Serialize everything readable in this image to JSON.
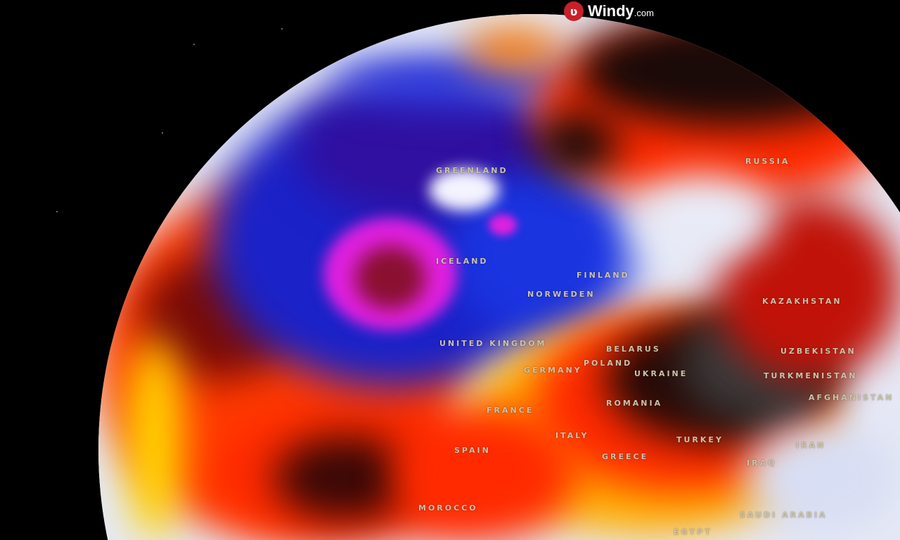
{
  "brand": {
    "name": "Windy",
    "suffix": ".com",
    "icon": "windy-logo-icon",
    "color": "#c8202a"
  },
  "map": {
    "layer": "temperature anomaly globe",
    "labels": [
      "GREENLAND",
      "RUSSIA",
      "ICELAND",
      "FINLAND",
      "NORWEDEN",
      "UNITED KINGDOM",
      "BELARUS",
      "POLAND",
      "GERMANY",
      "UKRAINE",
      "KAZAKHSTAN",
      "UZBEKISTAN",
      "TURKMENISTAN",
      "AFGHANISTAN",
      "FRANCE",
      "ROMANIA",
      "SPAIN",
      "ITALY",
      "GREECE",
      "TURKEY",
      "IRAN",
      "IRAQ",
      "MOROCCO",
      "SAUDI ARABIA",
      "EGYPT"
    ],
    "colors": {
      "cold": "#1a2ad8",
      "very_cold": "#e020e0",
      "warm": "#ff2a00",
      "hot": "#ffd800",
      "extreme": "#2a2a2a",
      "neutral": "#dfe4f6"
    }
  }
}
